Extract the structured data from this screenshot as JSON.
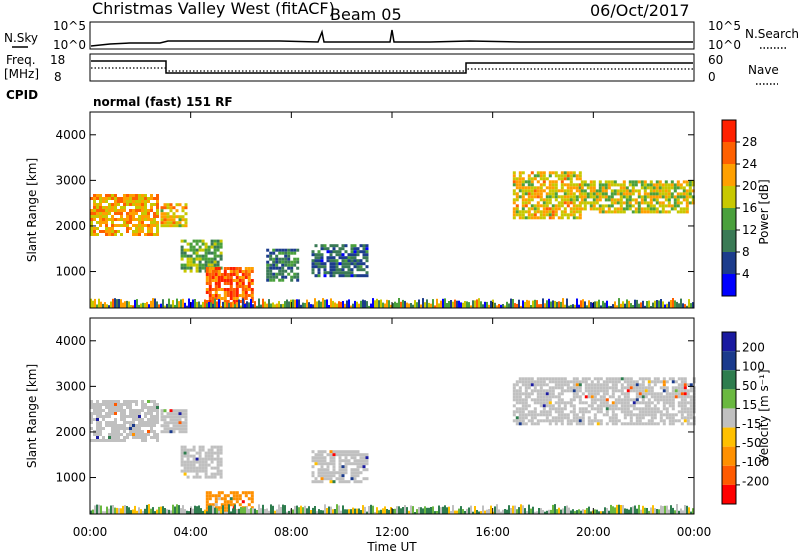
{
  "header": {
    "station_title": "Christmas Valley West (fitACF)",
    "beam": "Beam 05",
    "date": "06/Oct/2017"
  },
  "sky_panel": {
    "left_label": "N.Sky",
    "right_label": "N.Search",
    "left_ticks": [
      "10^5",
      "10^0"
    ],
    "right_ticks": [
      "10^5",
      "10^0"
    ]
  },
  "freq_panel": {
    "left_label_1": "Freq.",
    "left_label_2": "[MHz]",
    "right_label": "Nave",
    "left_ticks": [
      "18",
      "8"
    ],
    "right_ticks": [
      "60",
      "0"
    ]
  },
  "cpid": {
    "label": "CPID",
    "mode": "normal (fast) 151 RF"
  },
  "axes": {
    "time_ticks": [
      "00:00",
      "04:00",
      "08:00",
      "12:00",
      "16:00",
      "20:00",
      "00:00"
    ],
    "time_label": "Time UT",
    "range_ticks": [
      "1000",
      "2000",
      "3000",
      "4000"
    ],
    "range_label": "Slant Range [km]"
  },
  "power_scale": {
    "label": "Power [dB]",
    "ticks": [
      "4",
      "8",
      "12",
      "16",
      "20",
      "24",
      "28"
    ],
    "colors": [
      "#0000ff",
      "#1c3c8c",
      "#3a7a55",
      "#4aa03c",
      "#c8c800",
      "#ffa000",
      "#ff6000",
      "#ff2000"
    ]
  },
  "velocity_scale": {
    "label": "Velocity [m s⁻¹]",
    "ticks": [
      "200",
      "100",
      "50",
      "15",
      "-15",
      "-50",
      "-100",
      "-200"
    ],
    "colors": [
      "#1a1aa0",
      "#1a3a8c",
      "#2e7d4e",
      "#6ab840",
      "#c0c0c0",
      "#ffc000",
      "#ff9000",
      "#ff5a00",
      "#ff0000"
    ]
  },
  "chart_data": {
    "type": "heatmap",
    "x_unit": "hours UT",
    "y_unit": "km",
    "xlim": [
      0,
      24
    ],
    "ylim": [
      200,
      4500
    ],
    "power_regions": [
      {
        "t0": 0.0,
        "t1": 2.7,
        "r0": 1800,
        "r1": 2700,
        "power": 24
      },
      {
        "t0": 2.8,
        "t1": 3.8,
        "r0": 2000,
        "r1": 2500,
        "power": 22
      },
      {
        "t0": 3.6,
        "t1": 5.2,
        "r0": 1000,
        "r1": 1700,
        "power": 16
      },
      {
        "t0": 4.6,
        "t1": 6.4,
        "r0": 300,
        "r1": 1100,
        "power": 28
      },
      {
        "t0": 7.0,
        "t1": 8.2,
        "r0": 800,
        "r1": 1500,
        "power": 12
      },
      {
        "t0": 8.8,
        "t1": 11.0,
        "r0": 900,
        "r1": 1600,
        "power": 10
      },
      {
        "t0": 16.8,
        "t1": 19.5,
        "r0": 2200,
        "r1": 3200,
        "power": 22
      },
      {
        "t0": 19.5,
        "t1": 24.0,
        "r0": 2300,
        "r1": 3000,
        "power": 20
      }
    ],
    "velocity_regions": [
      {
        "t0": 0.0,
        "t1": 2.7,
        "r0": 1800,
        "r1": 2700,
        "velocity": 0
      },
      {
        "t0": 2.8,
        "t1": 3.8,
        "r0": 2000,
        "r1": 2500,
        "velocity": 0
      },
      {
        "t0": 3.6,
        "t1": 5.2,
        "r0": 1000,
        "r1": 1700,
        "velocity": 0
      },
      {
        "t0": 4.6,
        "t1": 6.4,
        "r0": 300,
        "r1": 700,
        "velocity": -60
      },
      {
        "t0": 8.8,
        "t1": 11.0,
        "r0": 900,
        "r1": 1600,
        "velocity": 0
      },
      {
        "t0": 16.8,
        "t1": 24.0,
        "r0": 2200,
        "r1": 3200,
        "velocity": 0
      }
    ]
  }
}
